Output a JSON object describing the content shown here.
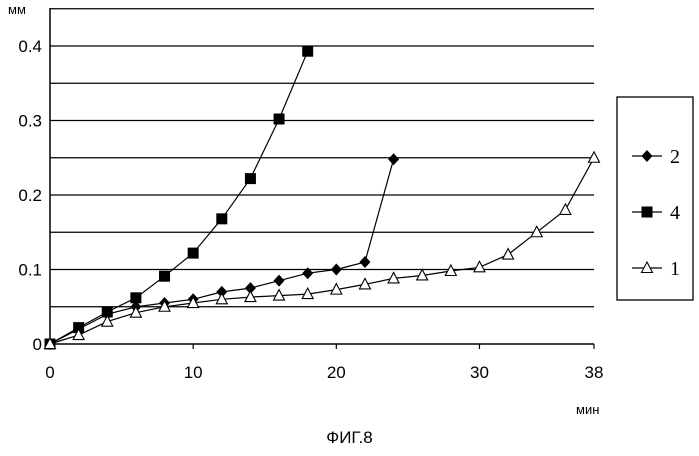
{
  "caption": "ФИГ.8",
  "chart_data": {
    "type": "line",
    "ylabel": "мм",
    "xlabel": "мин",
    "xlim": [
      0,
      38
    ],
    "ylim": [
      0,
      0.4
    ],
    "x_ticks": [
      0,
      10,
      20,
      30,
      38
    ],
    "x_tick_labels": [
      "0",
      "10",
      "20",
      "30",
      "38"
    ],
    "y_ticks": [
      0,
      0.1,
      0.2,
      0.3,
      0.4
    ],
    "y_tick_labels": [
      "0",
      "0.1",
      "0.2",
      "0.3",
      "0.4"
    ],
    "y_gridlines": [
      0.05,
      0.1,
      0.15,
      0.2,
      0.25,
      0.3,
      0.35,
      0.4,
      0.45
    ],
    "grid": true,
    "legend_position": "right",
    "series": [
      {
        "name": "2",
        "marker": "diamond",
        "x": [
          0,
          2,
          4,
          6,
          8,
          10,
          12,
          14,
          16,
          18,
          20,
          22,
          24
        ],
        "y": [
          0,
          0.02,
          0.04,
          0.05,
          0.055,
          0.06,
          0.07,
          0.075,
          0.085,
          0.095,
          0.1,
          0.11,
          0.248
        ]
      },
      {
        "name": "4",
        "marker": "square",
        "x": [
          0,
          2,
          4,
          6,
          8,
          10,
          12,
          14,
          16,
          18
        ],
        "y": [
          0,
          0.022,
          0.043,
          0.062,
          0.091,
          0.122,
          0.168,
          0.222,
          0.302,
          0.393
        ]
      },
      {
        "name": "1",
        "marker": "triangle-open",
        "x": [
          0,
          2,
          4,
          6,
          8,
          10,
          12,
          14,
          16,
          18,
          20,
          22,
          24,
          26,
          28,
          30,
          32,
          34,
          36,
          38
        ],
        "y": [
          0,
          0.012,
          0.03,
          0.042,
          0.05,
          0.055,
          0.06,
          0.063,
          0.065,
          0.067,
          0.073,
          0.08,
          0.088,
          0.092,
          0.098,
          0.103,
          0.12,
          0.15,
          0.18,
          0.25
        ]
      }
    ]
  }
}
